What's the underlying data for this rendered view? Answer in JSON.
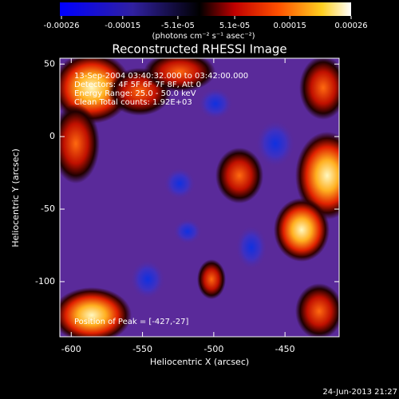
{
  "chart_data": {
    "type": "image",
    "title": "Reconstructed RHESSI Image",
    "xlabel": "Heliocentric X (arcsec)",
    "ylabel": "Heliocentric Y (arcsec)",
    "xlim": [
      -608,
      -412
    ],
    "ylim": [
      -138,
      54
    ],
    "xticks": [
      -600,
      -550,
      -500,
      -450
    ],
    "yticks": [
      -100,
      -50,
      0,
      50
    ],
    "annotations": [
      "13-Sep-2004 03:40:32.000 to 03:42:00.000",
      "Detectors: 4F 5F 6F 7F 8F, Att 0",
      "Energy Range: 25.0 - 50.0 keV",
      "Clean    Total counts: 1.92E+03"
    ],
    "peak_label": "Position of Peak = [-427,-27]",
    "timestamp": "24-Jun-2013 21:27",
    "colorbar": {
      "label": "(photons cm⁻² s⁻¹ asec⁻²)",
      "clim": [
        -0.00026,
        0.00026
      ],
      "ticks": [
        -0.00026,
        -0.00015,
        {
          "value": -5.1e-05,
          "label": "-5.1e-05"
        },
        {
          "value": 5.1e-05,
          "label": "5.1e-05"
        },
        0.00015,
        0.00026
      ]
    }
  }
}
